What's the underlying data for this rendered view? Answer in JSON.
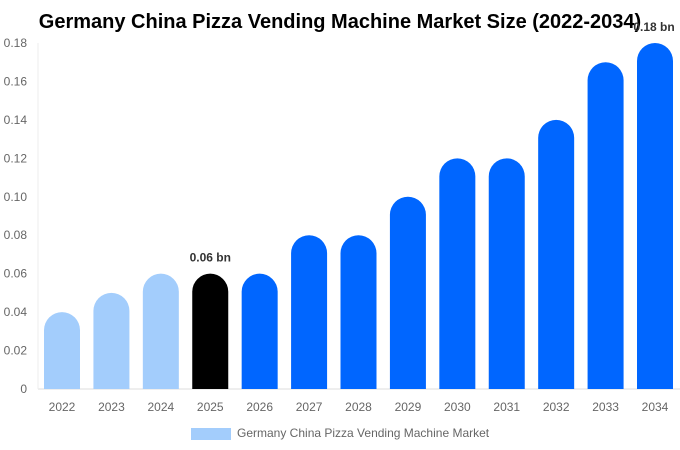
{
  "chart_data": {
    "type": "bar",
    "title": "Germany China Pizza Vending Machine Market Size (2022-2034)",
    "xlabel": "",
    "ylabel": "",
    "categories": [
      "2022",
      "2023",
      "2024",
      "2025",
      "2026",
      "2027",
      "2028",
      "2029",
      "2030",
      "2031",
      "2032",
      "2033",
      "2034"
    ],
    "series": [
      {
        "name": "Germany China Pizza Vending Machine Market",
        "values": [
          0.04,
          0.05,
          0.06,
          0.06,
          0.06,
          0.08,
          0.08,
          0.1,
          0.12,
          0.12,
          0.14,
          0.17,
          0.18
        ]
      }
    ],
    "ylim": [
      0,
      0.18
    ],
    "yticks": [
      "0",
      "0.02",
      "0.04",
      "0.06",
      "0.08",
      "0.10",
      "0.12",
      "0.14",
      "0.16",
      "0.18"
    ],
    "data_labels": [
      {
        "category": "2025",
        "text": "0.06 bn"
      },
      {
        "category": "2034",
        "text": "0.18 bn"
      }
    ],
    "grid": false,
    "legend_position": "bottom",
    "colors": {
      "historical": "#a3cdfc",
      "current": "#000000",
      "forecast": "#0066ff"
    },
    "bar_color_groups": [
      "historical",
      "historical",
      "historical",
      "current",
      "forecast",
      "forecast",
      "forecast",
      "forecast",
      "forecast",
      "forecast",
      "forecast",
      "forecast",
      "forecast"
    ]
  }
}
